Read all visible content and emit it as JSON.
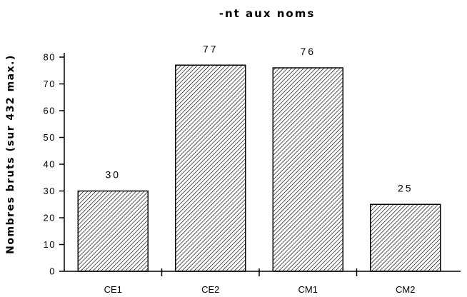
{
  "chart_data": {
    "type": "bar",
    "title": "-nt aux noms",
    "ylabel": "Nombres bruts (sur 432 max.)",
    "xlabel": "",
    "categories": [
      "CE1",
      "CE2",
      "CM1",
      "CM2"
    ],
    "values": [
      30,
      77,
      76,
      25
    ],
    "data_labels": [
      "30",
      "77",
      "76",
      "25"
    ],
    "yticks": [
      0,
      10,
      20,
      30,
      40,
      50,
      60,
      70,
      80
    ],
    "ylim": [
      0,
      80
    ],
    "grid": false,
    "legend": "none",
    "bar_pattern": "diagonal-hatch",
    "colors": {
      "bar_fill": "#ffffff",
      "hatch": "#000000",
      "axis": "#000000"
    }
  }
}
